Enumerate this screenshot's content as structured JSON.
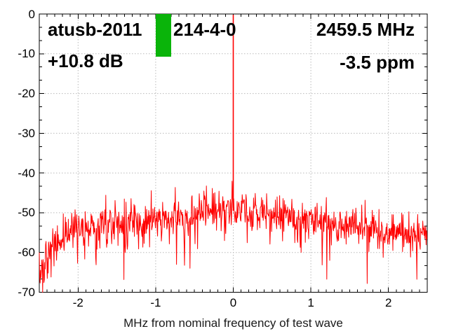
{
  "header": {
    "device_id_prefix": "atusb-2011",
    "device_id_suffix": "214-4-0",
    "center_frequency": "2459.5 MHz",
    "power_level": "+10.8 dB",
    "frequency_offset": "-3.5 ppm"
  },
  "chart_data": {
    "type": "line",
    "subtype": "rf-spectrum-noise-trace",
    "xlabel": "MHz from nominal frequency of test wave",
    "ylabel": "",
    "xlim": [
      -2.5,
      2.5
    ],
    "ylim": [
      -70,
      0
    ],
    "x_ticks": [
      -2,
      -1,
      0,
      1,
      2
    ],
    "y_ticks": [
      0,
      -10,
      -20,
      -30,
      -40,
      -50,
      -60,
      -70
    ],
    "x_minor_tick_step_mhz": 0.1,
    "y_minor_ticks_per_div": 3,
    "grid": true,
    "legend": "none",
    "colors": {
      "trace": "#ff0000",
      "grid": "#b9b9b9",
      "axis": "#000000",
      "marker_bar": "#0ab40a",
      "background": "#ffffff"
    },
    "carrier_spike": {
      "x_mhz": 0.0,
      "peak_db": -0.2,
      "base_db": -48.8
    },
    "marker_bar": {
      "x_from_mhz": -1.0,
      "x_to_mhz": -0.8,
      "top_db": 0.0,
      "bottom_db": -10.8
    },
    "noise_envelope_mean_db": {
      "x": [
        -2.5,
        -2.42,
        -2.3,
        -2.1,
        -1.9,
        -1.6,
        -1.3,
        -1.0,
        -0.7,
        -0.45,
        -0.25,
        -0.1,
        0.0,
        0.1,
        0.3,
        0.55,
        0.85,
        1.15,
        1.5,
        1.85,
        2.15,
        2.35,
        2.5
      ],
      "db": [
        -62.5,
        -60.5,
        -57.5,
        -55.3,
        -54.2,
        -53.0,
        -52.3,
        -51.8,
        -51.2,
        -50.6,
        -50.0,
        -49.3,
        -48.8,
        -49.4,
        -50.2,
        -50.8,
        -51.6,
        -52.4,
        -53.3,
        -54.3,
        -55.2,
        -55.6,
        -56.0
      ]
    },
    "noise_band_halfwidth_db": 4.0,
    "noise_floor_db": -70
  }
}
